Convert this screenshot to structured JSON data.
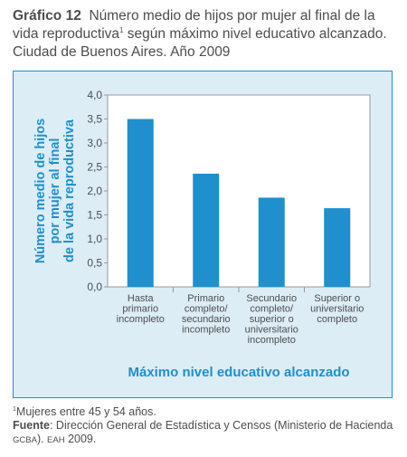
{
  "header": {
    "number": "Gráfico 12",
    "text_before_sup": "Número medio de hijos por mujer al final de la vida reproductiva",
    "sup": "1",
    "text_after_sup": " según máximo nivel educativo alcanzado. Ciudad de Buenos Aires. Año 2009"
  },
  "chart_data": {
    "type": "bar",
    "title": "",
    "categories": [
      [
        "Hasta",
        "primario",
        "incompleto"
      ],
      [
        "Primario",
        "completo/",
        "secundario",
        "incompleto"
      ],
      [
        "Secundario",
        "completo/",
        "superior o",
        "universitario",
        "incompleto"
      ],
      [
        "Superior o",
        "universitario",
        "completo"
      ]
    ],
    "values": [
      3.5,
      2.36,
      1.86,
      1.64
    ],
    "ylim": [
      0,
      4
    ],
    "yticks": [
      "4,0",
      "3,5",
      "3,0",
      "2,5",
      "2,0",
      "1,5",
      "1,0",
      "0,5",
      "0,0"
    ],
    "ylabel": [
      "Número medio de hijos",
      "por mujer al final",
      "de la vida reproductiva"
    ],
    "xlabel": "Máximo nivel educativo alcanzado",
    "grid": false,
    "colors": {
      "bar": "#1f8fce",
      "panel": "#dcedf6",
      "plot": "#ffffff",
      "axis_title": "#1f8fce"
    }
  },
  "notes": {
    "footnote_mark": "1",
    "footnote_text": "Mujeres entre 45 y 54 años.",
    "source_label": "Fuente",
    "source_text_1": ": Dirección General de Estadística y Censos (Ministerio de Hacienda ",
    "source_gcba": "GCBA",
    "source_text_2": "). ",
    "source_eah": "EAH",
    "source_text_3": " 2009."
  }
}
